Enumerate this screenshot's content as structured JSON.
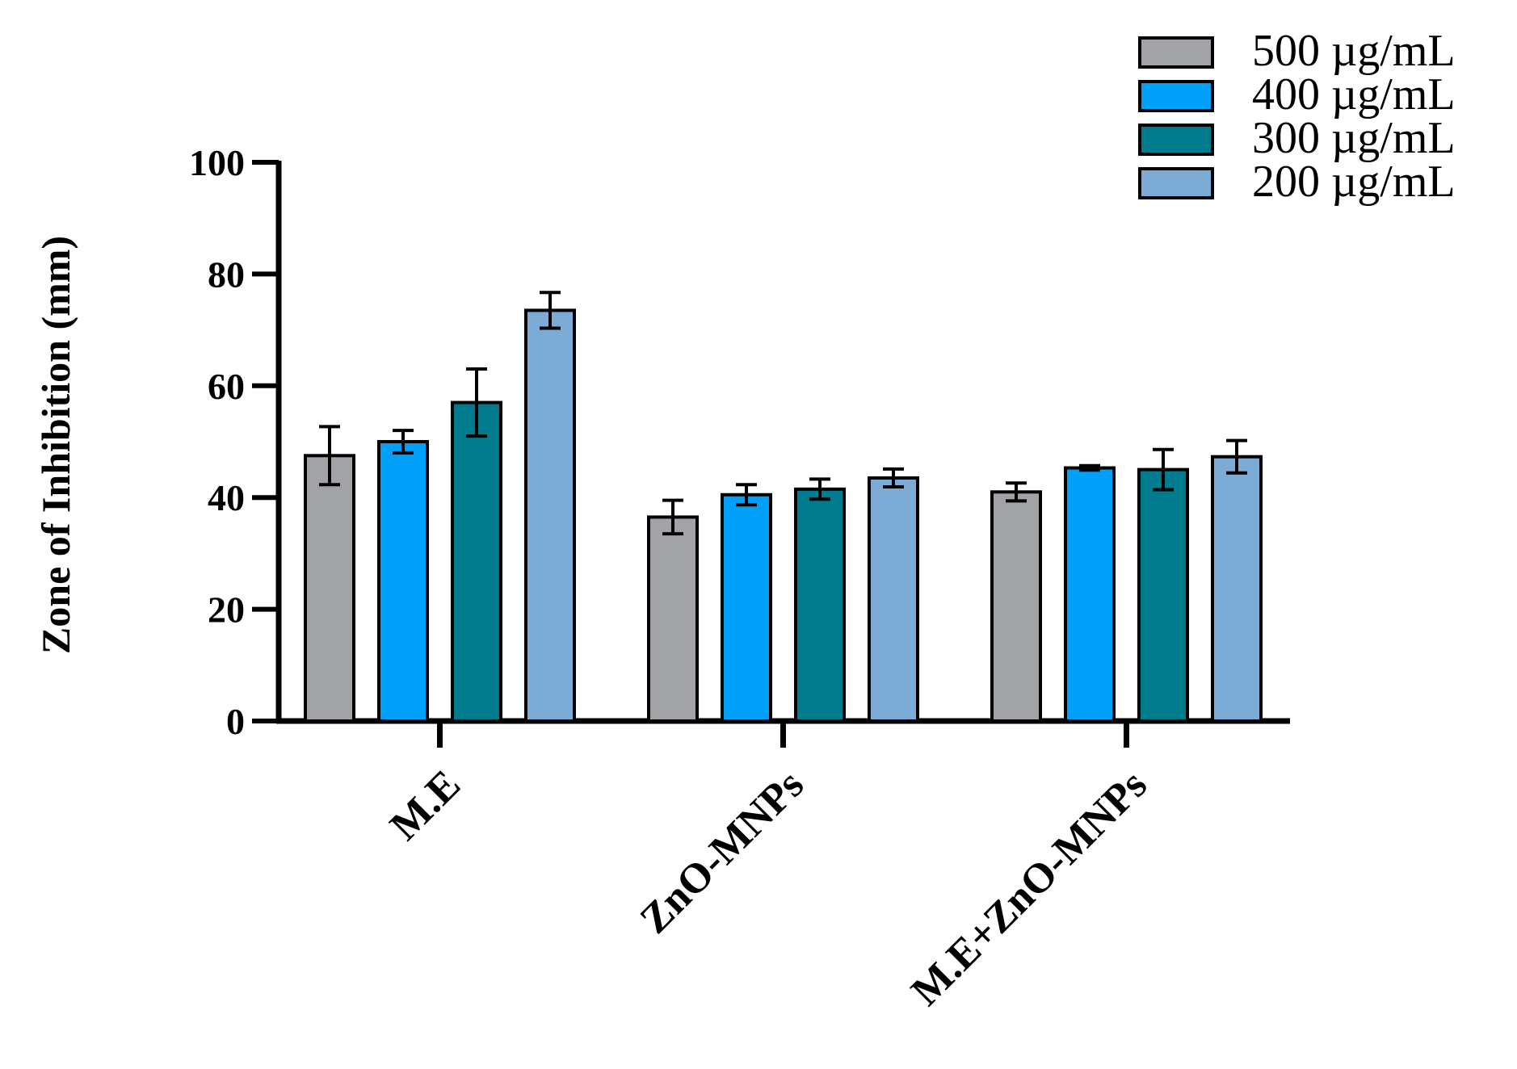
{
  "chart_data": {
    "type": "bar",
    "title": "",
    "xlabel": "",
    "ylabel": "Zone of Inhibition (mm)",
    "ylim": [
      0,
      100
    ],
    "yticks": [
      0,
      20,
      40,
      60,
      80,
      100
    ],
    "categories": [
      "M.E",
      "ZnO-MNPs",
      "M.E+ZnO-MNPs"
    ],
    "series": [
      {
        "name": "500 µg/mL",
        "color": "#a2a3a6",
        "values": [
          47.5,
          36.5,
          41.0
        ],
        "errors": [
          5.2,
          3.0,
          1.6
        ]
      },
      {
        "name": "400 µg/mL",
        "color": "#00a0f8",
        "values": [
          50.0,
          40.5,
          45.3
        ],
        "errors": [
          2.0,
          1.8,
          0.4
        ]
      },
      {
        "name": "300 µg/mL",
        "color": "#007b8e",
        "values": [
          57.0,
          41.5,
          45.0
        ],
        "errors": [
          6.0,
          1.8,
          3.6
        ]
      },
      {
        "name": "200 µg/mL",
        "color": "#7cabd6",
        "values": [
          73.5,
          43.5,
          47.3
        ],
        "errors": [
          3.2,
          1.6,
          2.9
        ]
      }
    ],
    "legend_position": "top-right",
    "grid": false
  }
}
